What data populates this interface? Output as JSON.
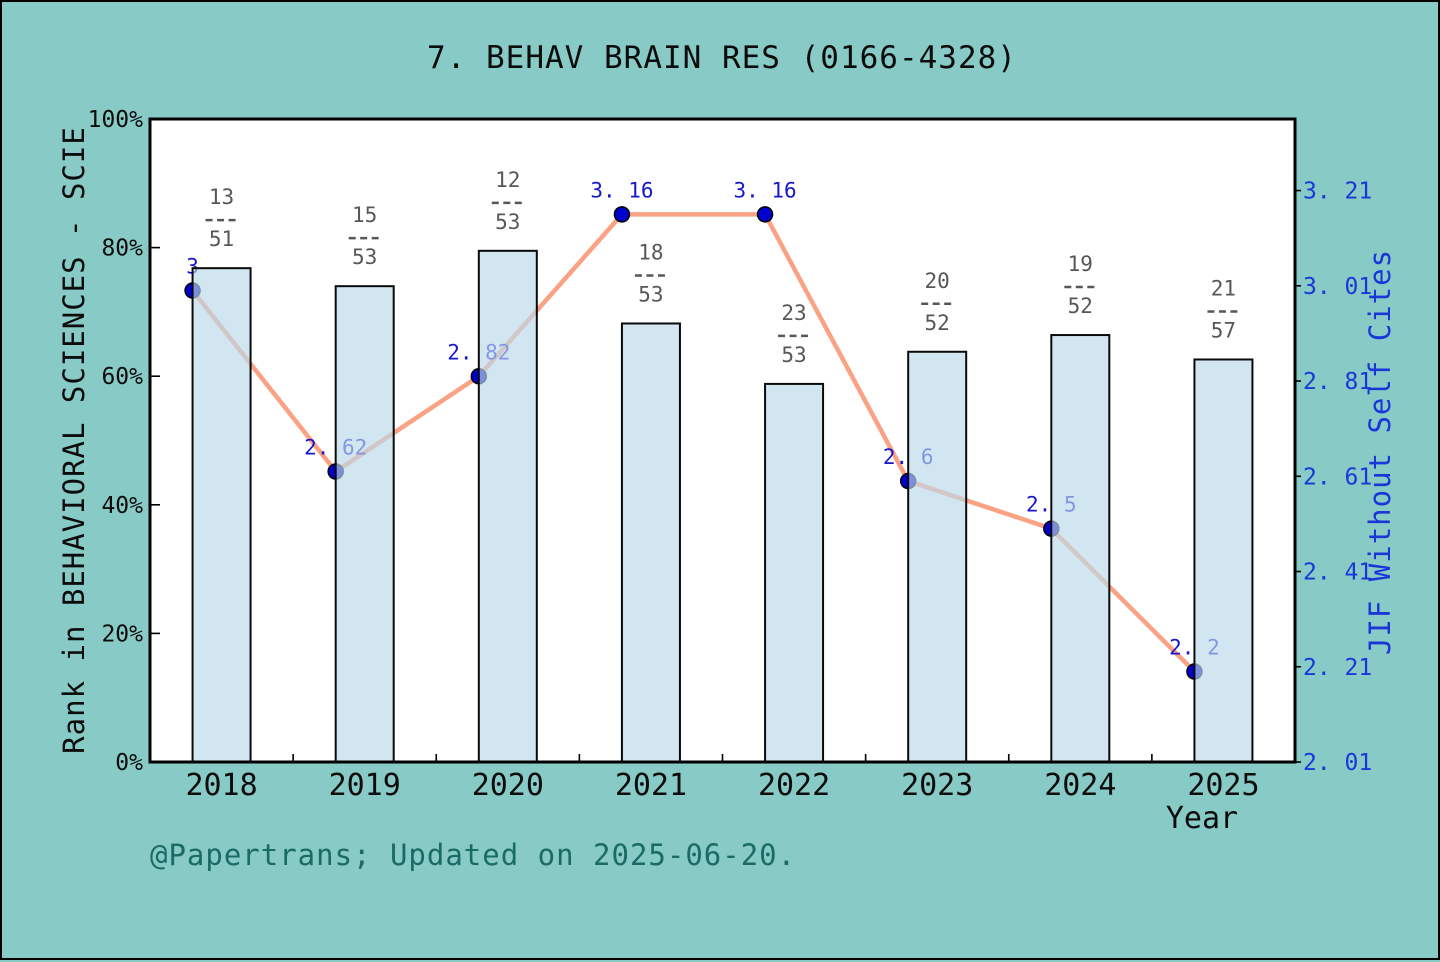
{
  "title": "7. BEHAV BRAIN RES (0166-4328)",
  "footer": "@Papertrans; Updated on 2025-06-20.",
  "chart_data": {
    "type": "combo-bar-line",
    "categories": [
      "2018",
      "2019",
      "2020",
      "2021",
      "2022",
      "2023",
      "2024",
      "2025"
    ],
    "series": [
      {
        "name": "Rank in BEHAVIORAL SCIENCES - SCIE",
        "type": "bar",
        "axis": "left",
        "unit": "percent",
        "values_percent": [
          76.8,
          74.0,
          79.5,
          68.2,
          58.8,
          63.8,
          66.4,
          62.6
        ],
        "rank_fractions": [
          {
            "numerator": 13,
            "denominator": 51
          },
          {
            "numerator": 15,
            "denominator": 53
          },
          {
            "numerator": 12,
            "denominator": 53
          },
          {
            "numerator": 18,
            "denominator": 53
          },
          {
            "numerator": 23,
            "denominator": 53
          },
          {
            "numerator": 20,
            "denominator": 52
          },
          {
            "numerator": 19,
            "denominator": 52
          },
          {
            "numerator": 21,
            "denominator": 57
          }
        ]
      },
      {
        "name": "JIF Without Self Cites",
        "type": "line",
        "axis": "right",
        "values": [
          3,
          2.62,
          2.82,
          3.16,
          3.16,
          2.6,
          2.5,
          2.2
        ]
      }
    ],
    "axes": {
      "left": {
        "label": "Rank in BEHAVIORAL SCIENCES - SCIE",
        "tick_values": [
          0,
          20,
          40,
          60,
          80,
          100
        ],
        "ticks": [
          "0%",
          "20%",
          "40%",
          "60%",
          "80%",
          "100%"
        ],
        "range": [
          0,
          100
        ]
      },
      "right": {
        "label": "JIF Without Self Cites",
        "tick_values": [
          2.01,
          2.21,
          2.41,
          2.61,
          2.81,
          3.01,
          3.21
        ],
        "ticks": [
          "2.01",
          "2.21",
          "2.41",
          "2.61",
          "2.81",
          "3.01",
          "3.21"
        ]
      },
      "x": {
        "label": "Year",
        "ticks": [
          "2018",
          "2019",
          "2020",
          "2021",
          "2022",
          "2023",
          "2024",
          "2025"
        ]
      }
    },
    "legend": "none",
    "grid": "off"
  },
  "colors": {
    "background": "#87CAC6",
    "plot_background": "#FFFFFF",
    "bar_fill": "rgba(187,217,235,0.66)",
    "bar_border": "#0a0a0a",
    "line": "#FBA184",
    "marker": "#0000CC",
    "marker_border": "#000000",
    "value_label": "#1717CD",
    "right_axis_text": "#1b36d8",
    "fraction_text": "#575757",
    "axis_text": "#0c0c0c",
    "footer_text": "#1A6B66"
  }
}
